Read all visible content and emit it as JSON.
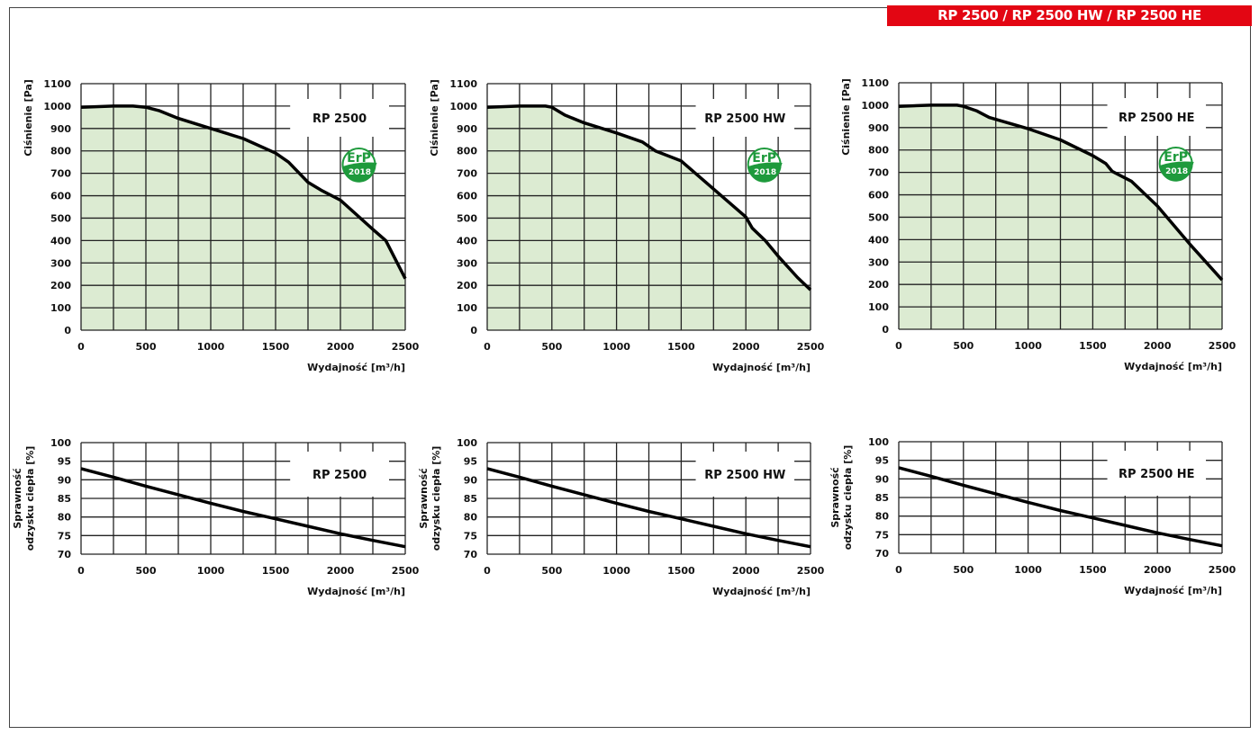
{
  "header": {
    "title": "RP 2500 / RP 2500 HW / RP 2500 HE"
  },
  "colors": {
    "banner": "#e30613",
    "fill": "#dcebd2",
    "curve": "#000000",
    "grid": "#222222",
    "erp_green": "#1e9a3c"
  },
  "erp_logo": {
    "text": "ErP",
    "year": "2018"
  },
  "chart_data": [
    {
      "type": "area",
      "title": "RP 2500",
      "xlabel": "Wydajność [m³/h]",
      "ylabel": "Ciśnienie [Pa]",
      "xlim": [
        0,
        2500
      ],
      "ylim": [
        0,
        1100
      ],
      "grid": true,
      "legend": "top-right",
      "erp": true,
      "xticks": [
        "0",
        "500",
        "1000",
        "1500",
        "2000",
        "2500"
      ],
      "yticks": [
        "0",
        "100",
        "200",
        "300",
        "400",
        "500",
        "600",
        "700",
        "800",
        "900",
        "1000",
        "1100"
      ],
      "x": [
        0,
        250,
        400,
        500,
        600,
        750,
        1000,
        1250,
        1500,
        1600,
        1750,
        1850,
        2000,
        2250,
        2350,
        2500
      ],
      "y": [
        995,
        1000,
        1000,
        995,
        980,
        945,
        900,
        855,
        790,
        750,
        660,
        625,
        580,
        450,
        400,
        230
      ]
    },
    {
      "type": "area",
      "title": "RP 2500 HW",
      "xlabel": "Wydajność [m³/h]",
      "ylabel": "Ciśnienie [Pa]",
      "xlim": [
        0,
        2500
      ],
      "ylim": [
        0,
        1100
      ],
      "grid": true,
      "legend": "top-right",
      "erp": true,
      "xticks": [
        "0",
        "500",
        "1000",
        "1500",
        "2000",
        "2500"
      ],
      "yticks": [
        "0",
        "100",
        "200",
        "300",
        "400",
        "500",
        "600",
        "700",
        "800",
        "900",
        "1000",
        "1100"
      ],
      "x": [
        0,
        250,
        450,
        500,
        600,
        750,
        1000,
        1200,
        1300,
        1500,
        1750,
        2000,
        2050,
        2150,
        2250,
        2400,
        2500
      ],
      "y": [
        995,
        1000,
        1000,
        995,
        960,
        925,
        880,
        840,
        800,
        755,
        630,
        505,
        455,
        400,
        330,
        235,
        180
      ]
    },
    {
      "type": "area",
      "title": "RP 2500 HE",
      "xlabel": "Wydajność [m³/h]",
      "ylabel": "Ciśnienie [Pa]",
      "xlim": [
        0,
        2500
      ],
      "ylim": [
        0,
        1100
      ],
      "grid": true,
      "legend": "top-right",
      "erp": true,
      "xticks": [
        "0",
        "500",
        "1000",
        "1500",
        "2000",
        "2500"
      ],
      "yticks": [
        "0",
        "100",
        "200",
        "300",
        "400",
        "500",
        "600",
        "700",
        "800",
        "900",
        "1000",
        "1100"
      ],
      "x": [
        0,
        250,
        450,
        500,
        600,
        700,
        1000,
        1250,
        1500,
        1600,
        1650,
        1800,
        2000,
        2250,
        2500
      ],
      "y": [
        995,
        1000,
        1000,
        995,
        975,
        945,
        895,
        845,
        775,
        740,
        705,
        660,
        550,
        380,
        220
      ]
    },
    {
      "type": "line",
      "title": "RP 2500",
      "xlabel": "Wydajność [m³/h]",
      "ylabel": "Sprawność odzysku ciepła [%]",
      "ylabel_lines": [
        "Sprawność",
        "odzysku ciepła [%]"
      ],
      "xlim": [
        0,
        2500
      ],
      "ylim": [
        70,
        100
      ],
      "grid": true,
      "legend": "top-right",
      "erp": false,
      "xticks": [
        "0",
        "500",
        "1000",
        "1500",
        "2000",
        "2500"
      ],
      "yticks": [
        "70",
        "75",
        "80",
        "85",
        "90",
        "95",
        "100"
      ],
      "x": [
        0,
        250,
        500,
        750,
        1000,
        1250,
        1500,
        1750,
        2000,
        2250,
        2500
      ],
      "y": [
        93,
        90.7,
        88.3,
        86,
        83.7,
        81.5,
        79.5,
        77.5,
        75.5,
        73.7,
        72
      ]
    },
    {
      "type": "line",
      "title": "RP 2500 HW",
      "xlabel": "Wydajność [m³/h]",
      "ylabel": "Sprawność odzysku ciepła [%]",
      "ylabel_lines": [
        "Sprawność",
        "odzysku ciepła [%]"
      ],
      "xlim": [
        0,
        2500
      ],
      "ylim": [
        70,
        100
      ],
      "grid": true,
      "legend": "top-right",
      "erp": false,
      "xticks": [
        "0",
        "500",
        "1000",
        "1500",
        "2000",
        "2500"
      ],
      "yticks": [
        "70",
        "75",
        "80",
        "85",
        "90",
        "95",
        "100"
      ],
      "x": [
        0,
        250,
        500,
        750,
        1000,
        1250,
        1500,
        1750,
        2000,
        2250,
        2500
      ],
      "y": [
        93,
        90.7,
        88.3,
        86,
        83.7,
        81.5,
        79.5,
        77.5,
        75.5,
        73.7,
        72
      ]
    },
    {
      "type": "line",
      "title": "RP 2500 HE",
      "xlabel": "Wydajność [m³/h]",
      "ylabel": "Sprawność odzysku ciepła [%]",
      "ylabel_lines": [
        "Sprawność",
        "odzysku ciepła [%]"
      ],
      "xlim": [
        0,
        2500
      ],
      "ylim": [
        70,
        100
      ],
      "grid": true,
      "legend": "top-right",
      "erp": false,
      "xticks": [
        "0",
        "500",
        "1000",
        "1500",
        "2000",
        "2500"
      ],
      "yticks": [
        "70",
        "75",
        "80",
        "85",
        "90",
        "95",
        "100"
      ],
      "x": [
        0,
        250,
        500,
        750,
        1000,
        1250,
        1500,
        1750,
        2000,
        2250,
        2500
      ],
      "y": [
        93,
        90.7,
        88.3,
        86,
        83.7,
        81.5,
        79.5,
        77.5,
        75.5,
        73.7,
        72
      ]
    }
  ]
}
